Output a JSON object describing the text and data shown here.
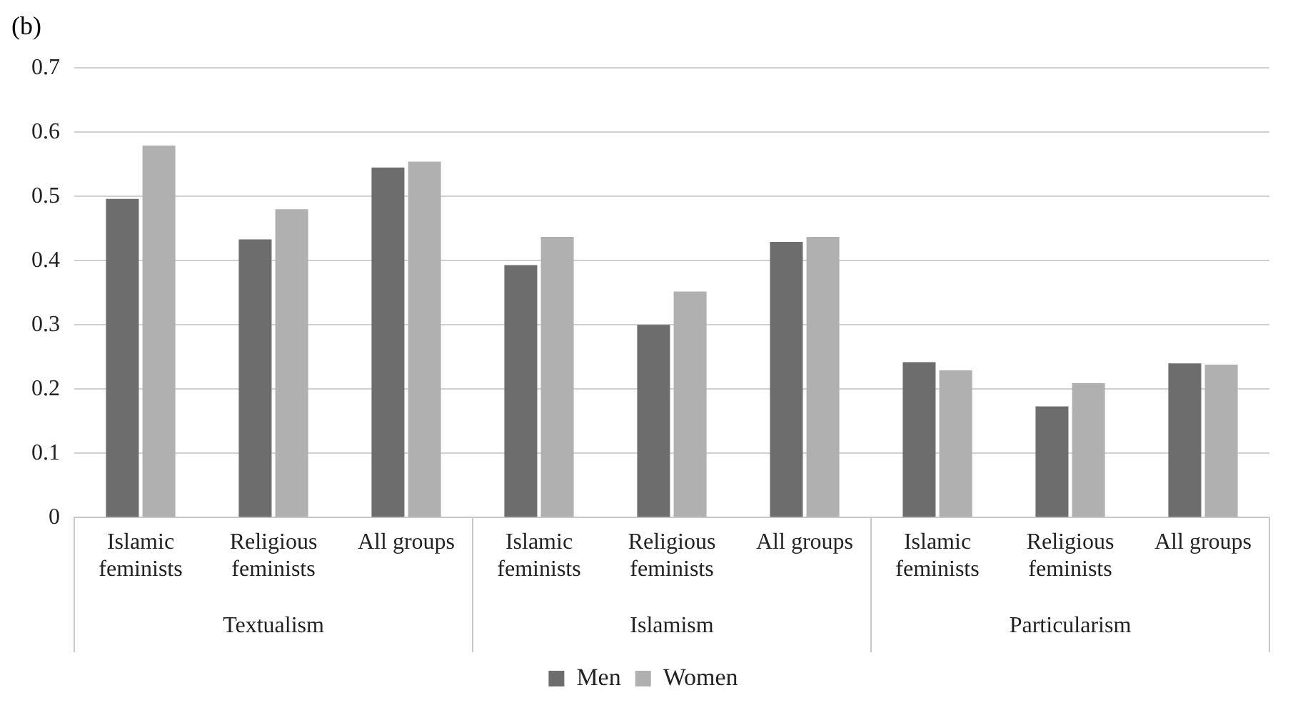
{
  "chart_data": {
    "type": "bar",
    "title": "(b)",
    "categories": [
      "Islamic feminists",
      "Religious feminists",
      "All groups",
      "Islamic feminists",
      "Religious feminists",
      "All groups",
      "Islamic feminists",
      "Religious feminists",
      "All groups"
    ],
    "annotations": [
      "Textualism",
      "Islamism",
      "Particularism"
    ],
    "series": [
      {
        "name": "Men",
        "color": "#6d6d6d",
        "values": [
          0.496,
          0.433,
          0.545,
          0.393,
          0.3,
          0.429,
          0.242,
          0.173,
          0.24
        ]
      },
      {
        "name": "Women",
        "color": "#b0b0b0",
        "values": [
          0.579,
          0.48,
          0.554,
          0.437,
          0.352,
          0.437,
          0.229,
          0.209,
          0.238
        ]
      }
    ],
    "ylim": [
      0,
      0.7
    ],
    "yticks": [
      0,
      0.1,
      0.2,
      0.3,
      0.4,
      0.5,
      0.6,
      0.7
    ],
    "grid": "y",
    "legend": "bottom"
  }
}
